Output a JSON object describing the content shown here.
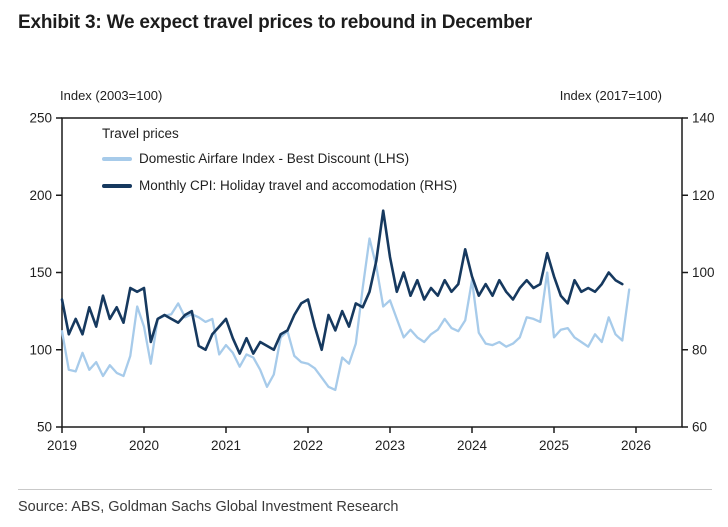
{
  "title": "Exhibit 3: We expect travel prices to rebound in December",
  "source": "Source: ABS, Goldman Sachs Global Investment Research",
  "axis_headers": {
    "left": "Index (2003=100)",
    "right": "Index (2017=100)"
  },
  "legend": {
    "title": "Travel prices",
    "items": [
      {
        "label": "Domestic Airfare Index - Best Discount (LHS)"
      },
      {
        "label": "Monthly CPI: Holiday travel and accomodation (RHS)"
      }
    ]
  },
  "colors": {
    "light_blue": "#A7CBEA",
    "dark_navy": "#16395F",
    "axis": "#1a1a1a",
    "text": "#1f1f1f"
  },
  "chart_data": {
    "type": "line",
    "title": "Travel prices",
    "x_start": "2019-01",
    "frequency": "monthly",
    "x_tick_labels": [
      "2019",
      "2020",
      "2021",
      "2022",
      "2023",
      "2024",
      "2025",
      "2026"
    ],
    "grid": false,
    "legend_position": "top-left-inside",
    "left_axis": {
      "label": "Index (2003=100)",
      "range": [
        50,
        250
      ],
      "ticks": [
        250,
        200,
        150,
        100,
        50
      ]
    },
    "right_axis": {
      "label": "Index (2017=100)",
      "range": [
        60,
        140
      ],
      "ticks": [
        140,
        120,
        100,
        80,
        60
      ]
    },
    "series": [
      {
        "name": "Domestic Airfare Index - Best Discount (LHS)",
        "axis": "left",
        "color": "#A7CBEA",
        "stroke_width": 2.3,
        "values": [
          112,
          87,
          86,
          98,
          87,
          92,
          83,
          90,
          85,
          83,
          96,
          128,
          115,
          91,
          120,
          122,
          123,
          130,
          121,
          123,
          121,
          118,
          120,
          97,
          103,
          98,
          89,
          97,
          95,
          87,
          76,
          84,
          108,
          112,
          96,
          92,
          91,
          88,
          82,
          76,
          74,
          95,
          91,
          104,
          140,
          172,
          154,
          128,
          132,
          120,
          108,
          113,
          108,
          105,
          110,
          113,
          120,
          114,
          112,
          119,
          145,
          111,
          104,
          103,
          105,
          102,
          104,
          108,
          121,
          120,
          118,
          150,
          108,
          113,
          114,
          108,
          105,
          102,
          110,
          105,
          121,
          110,
          106,
          139
        ]
      },
      {
        "name": "Monthly CPI: Holiday travel and accomodation (RHS)",
        "axis": "right",
        "color": "#16395F",
        "stroke_width": 2.6,
        "values": [
          93,
          84,
          88,
          84,
          91,
          86,
          94,
          88,
          91,
          87,
          96,
          95,
          96,
          82,
          88,
          89,
          88,
          87,
          89,
          90,
          81,
          80,
          84,
          86,
          88,
          83,
          79,
          83,
          79,
          82,
          81,
          80,
          84,
          85,
          89,
          92,
          93,
          86,
          80,
          89,
          85,
          90,
          86,
          92,
          91,
          95,
          103,
          116,
          104,
          95,
          100,
          94,
          98,
          93,
          96,
          94,
          98,
          95,
          97,
          106,
          99,
          94,
          97,
          94,
          98,
          95,
          93,
          96,
          98,
          96,
          97,
          105,
          99,
          94,
          92,
          98,
          95,
          96,
          95,
          97,
          100,
          98,
          97,
          null
        ]
      }
    ]
  }
}
